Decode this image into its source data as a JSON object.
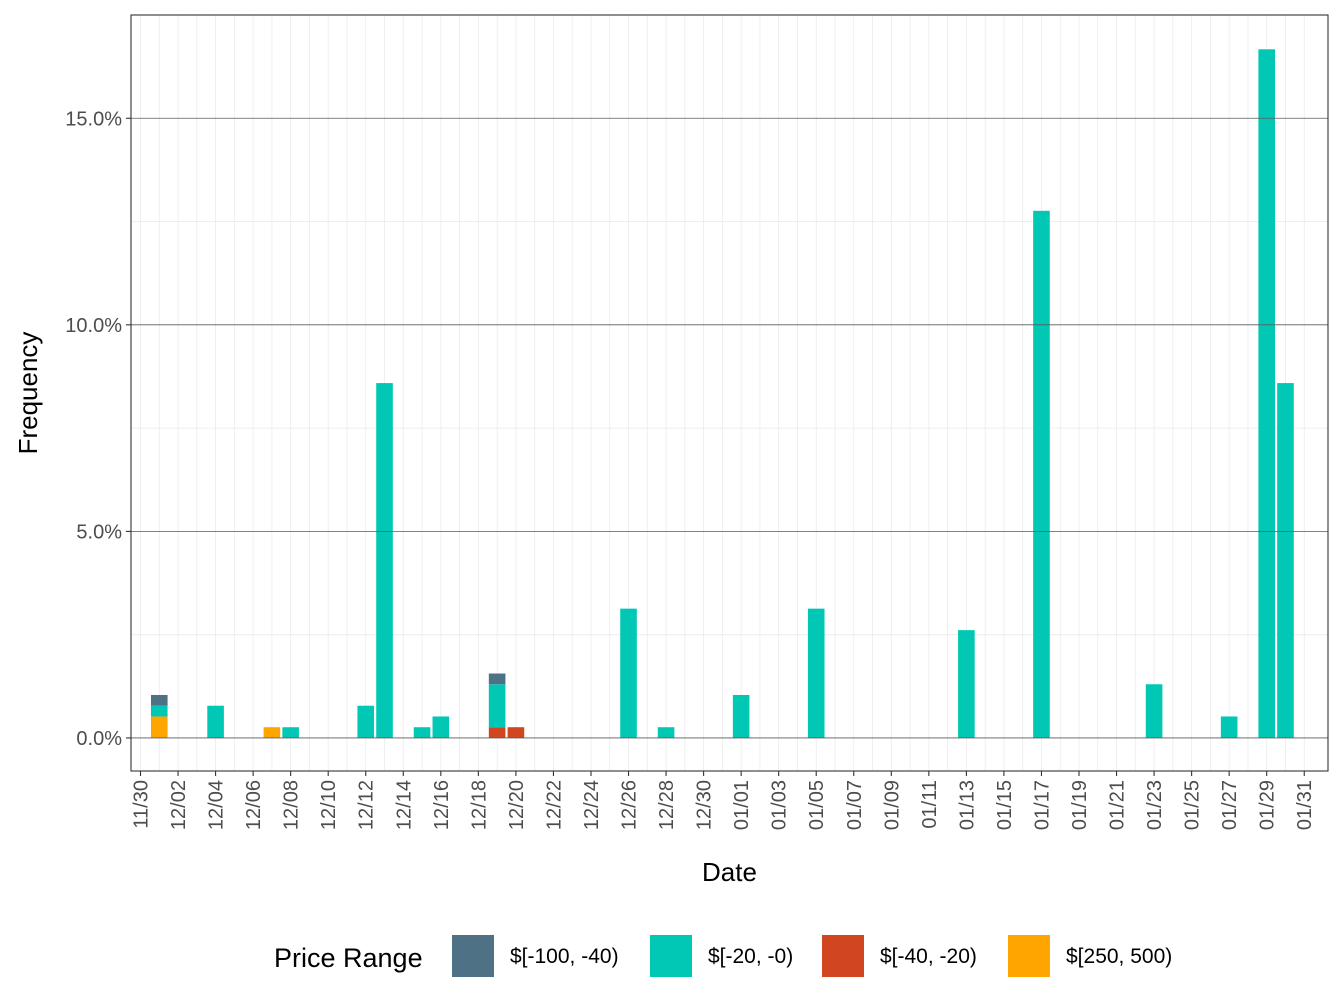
{
  "chart_data": {
    "type": "bar",
    "stacked": true,
    "xlabel": "Date",
    "ylabel": "Frequency",
    "ylim": [
      -0.8,
      17.5
    ],
    "y_ticks": [
      "0.0%",
      "5.0%",
      "10.0%",
      "15.0%"
    ],
    "y_tick_values": [
      0,
      5,
      10,
      15
    ],
    "x_tick_labels": [
      "11/30",
      "12/02",
      "12/04",
      "12/06",
      "12/08",
      "12/10",
      "12/12",
      "12/14",
      "12/16",
      "12/18",
      "12/20",
      "12/22",
      "12/24",
      "12/26",
      "12/28",
      "12/30",
      "01/01",
      "01/03",
      "01/05",
      "01/07",
      "01/09",
      "01/11",
      "01/13",
      "01/15",
      "01/17",
      "01/19",
      "01/21",
      "01/23",
      "01/25",
      "01/27",
      "01/29",
      "01/31"
    ],
    "x_start": "11/30",
    "categories": [
      "11/30",
      "12/01",
      "12/02",
      "12/03",
      "12/04",
      "12/05",
      "12/06",
      "12/07",
      "12/08",
      "12/09",
      "12/10",
      "12/11",
      "12/12",
      "12/13",
      "12/14",
      "12/15",
      "12/16",
      "12/17",
      "12/18",
      "12/19",
      "12/20",
      "12/21",
      "12/22",
      "12/23",
      "12/24",
      "12/25",
      "12/26",
      "12/27",
      "12/28",
      "12/29",
      "12/30",
      "12/31",
      "01/01",
      "01/02",
      "01/03",
      "01/04",
      "01/05",
      "01/06",
      "01/07",
      "01/08",
      "01/09",
      "01/10",
      "01/11",
      "01/12",
      "01/13",
      "01/14",
      "01/15",
      "01/16",
      "01/17",
      "01/18",
      "01/19",
      "01/20",
      "01/21",
      "01/22",
      "01/23",
      "01/24",
      "01/25",
      "01/26",
      "01/27",
      "01/28",
      "01/29",
      "01/30",
      "01/31"
    ],
    "series": [
      {
        "name": "$[250, 500)",
        "color": "#FFA500",
        "points": [
          {
            "x": "12/01",
            "y": 0.52
          },
          {
            "x": "12/07",
            "y": 0.26
          }
        ]
      },
      {
        "name": "$[-40, -20)",
        "color": "#D14520",
        "points": [
          {
            "x": "12/19",
            "y": 0.26
          },
          {
            "x": "12/20",
            "y": 0.26
          }
        ]
      },
      {
        "name": "$[-20, -0)",
        "color": "#00C8B4",
        "points": [
          {
            "x": "12/01",
            "y": 0.26
          },
          {
            "x": "12/04",
            "y": 0.78
          },
          {
            "x": "12/08",
            "y": 0.26
          },
          {
            "x": "12/12",
            "y": 0.78
          },
          {
            "x": "12/13",
            "y": 8.59
          },
          {
            "x": "12/15",
            "y": 0.26
          },
          {
            "x": "12/16",
            "y": 0.52
          },
          {
            "x": "12/19",
            "y": 1.04
          },
          {
            "x": "12/26",
            "y": 3.13
          },
          {
            "x": "12/28",
            "y": 0.26
          },
          {
            "x": "01/01",
            "y": 1.04
          },
          {
            "x": "01/05",
            "y": 3.13
          },
          {
            "x": "01/13",
            "y": 2.61
          },
          {
            "x": "01/17",
            "y": 12.76
          },
          {
            "x": "01/23",
            "y": 1.3
          },
          {
            "x": "01/27",
            "y": 0.52
          },
          {
            "x": "01/29",
            "y": 16.67
          },
          {
            "x": "01/30",
            "y": 8.59
          }
        ]
      },
      {
        "name": "$[-100, -40)",
        "color": "#4E7186",
        "points": [
          {
            "x": "12/01",
            "y": 0.26
          },
          {
            "x": "12/19",
            "y": 0.26
          }
        ]
      }
    ],
    "legend": {
      "title": "Price Range",
      "position": "bottom",
      "items": [
        {
          "label": "$[-100, -40)",
          "color": "#4E7186"
        },
        {
          "label": "$[-20, -0)",
          "color": "#00C8B4"
        },
        {
          "label": "$[-40, -20)",
          "color": "#D14520"
        },
        {
          "label": "$[250, 500)",
          "color": "#FFA500"
        }
      ]
    },
    "grid": true,
    "theme": "bw"
  }
}
